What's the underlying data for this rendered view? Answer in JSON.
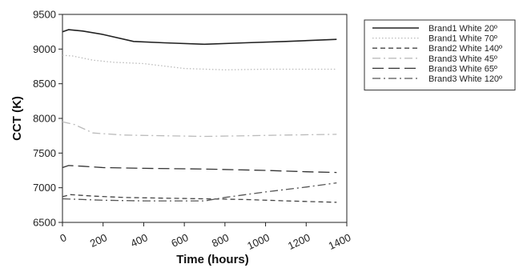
{
  "chart_data": {
    "type": "line",
    "xlabel": "Time (hours)",
    "ylabel": "CCT (K)",
    "xlim": [
      0,
      1400
    ],
    "ylim": [
      6500,
      9500
    ],
    "xticks": [
      0,
      200,
      400,
      600,
      800,
      1000,
      1200,
      1400
    ],
    "yticks": [
      6500,
      7000,
      7500,
      8000,
      8500,
      9000,
      9500
    ],
    "grid": false,
    "legend_position": "right",
    "series": [
      {
        "name": "Brand1 White 20º",
        "dash": "solid",
        "color": "#222222",
        "points": [
          [
            0,
            9250
          ],
          [
            30,
            9280
          ],
          [
            100,
            9260
          ],
          [
            200,
            9210
          ],
          [
            350,
            9110
          ],
          [
            500,
            9090
          ],
          [
            700,
            9070
          ],
          [
            900,
            9090
          ],
          [
            1100,
            9110
          ],
          [
            1350,
            9140
          ]
        ]
      },
      {
        "name": "Brand1 White 70º",
        "dash": "dotted",
        "color": "#bbbbbb",
        "points": [
          [
            0,
            8910
          ],
          [
            50,
            8900
          ],
          [
            150,
            8840
          ],
          [
            250,
            8810
          ],
          [
            400,
            8790
          ],
          [
            600,
            8720
          ],
          [
            800,
            8700
          ],
          [
            1000,
            8710
          ],
          [
            1200,
            8710
          ],
          [
            1350,
            8710
          ]
        ]
      },
      {
        "name": "Brand2 White 140º",
        "dash": "short-dash",
        "color": "#444444",
        "points": [
          [
            0,
            6870
          ],
          [
            40,
            6900
          ],
          [
            150,
            6880
          ],
          [
            300,
            6860
          ],
          [
            500,
            6850
          ],
          [
            700,
            6840
          ],
          [
            900,
            6830
          ],
          [
            1100,
            6810
          ],
          [
            1350,
            6790
          ]
        ]
      },
      {
        "name": "Brand3 White 45º",
        "dash": "dash-dot",
        "color": "#bbbbbb",
        "points": [
          [
            0,
            7950
          ],
          [
            60,
            7910
          ],
          [
            150,
            7790
          ],
          [
            300,
            7760
          ],
          [
            500,
            7750
          ],
          [
            700,
            7740
          ],
          [
            900,
            7750
          ],
          [
            1100,
            7760
          ],
          [
            1350,
            7770
          ]
        ]
      },
      {
        "name": "Brand3 White 65º",
        "dash": "long-dash",
        "color": "#333333",
        "points": [
          [
            0,
            7290
          ],
          [
            30,
            7320
          ],
          [
            100,
            7310
          ],
          [
            200,
            7290
          ],
          [
            400,
            7280
          ],
          [
            700,
            7270
          ],
          [
            1000,
            7250
          ],
          [
            1200,
            7230
          ],
          [
            1350,
            7220
          ]
        ]
      },
      {
        "name": "Brand3 White 120º",
        "dash": "dash-dot",
        "color": "#555555",
        "points": [
          [
            0,
            6840
          ],
          [
            100,
            6830
          ],
          [
            200,
            6820
          ],
          [
            400,
            6810
          ],
          [
            600,
            6810
          ],
          [
            700,
            6810
          ],
          [
            800,
            6860
          ],
          [
            1000,
            6940
          ],
          [
            1200,
            7010
          ],
          [
            1350,
            7070
          ]
        ]
      }
    ]
  }
}
